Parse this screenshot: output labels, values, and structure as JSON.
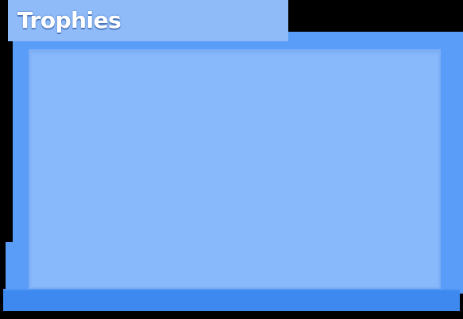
{
  "header": {
    "title": "Trophies"
  },
  "colors": {
    "tab": "#8fbbf9",
    "frame": "#5a9df8",
    "content": "#88b9fb",
    "base": "#3d89f0",
    "background": "#000000"
  }
}
